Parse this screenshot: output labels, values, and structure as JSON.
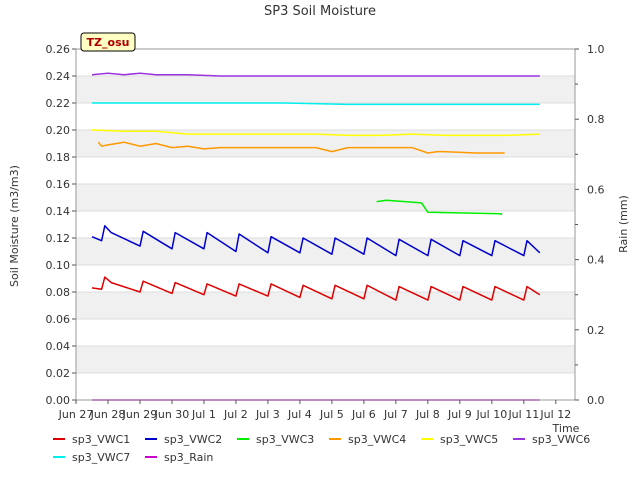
{
  "chart_data": {
    "type": "line",
    "title": "SP3 Soil Moisture",
    "badge": "TZ_osu",
    "xlabel": "Time",
    "ylabel": "Soil Moisture (m3/m3)",
    "y2label": "Rain (mm)",
    "xlim": [
      -0.5,
      15.1
    ],
    "ylim": [
      0,
      0.26
    ],
    "y2lim": [
      0,
      1.0
    ],
    "x_ticks": [
      {
        "v": -0.5,
        "label": "Jun 27"
      },
      {
        "v": 0.5,
        "label": "Jun 28"
      },
      {
        "v": 1.5,
        "label": "Jun 29"
      },
      {
        "v": 2.5,
        "label": "Jun 30"
      },
      {
        "v": 3.5,
        "label": "Jul 1"
      },
      {
        "v": 4.5,
        "label": "Jul 2"
      },
      {
        "v": 5.5,
        "label": "Jul 3"
      },
      {
        "v": 6.5,
        "label": "Jul 4"
      },
      {
        "v": 7.5,
        "label": "Jul 5"
      },
      {
        "v": 8.5,
        "label": "Jul 6"
      },
      {
        "v": 9.5,
        "label": "Jul 7"
      },
      {
        "v": 10.5,
        "label": "Jul 8"
      },
      {
        "v": 11.5,
        "label": "Jul 9"
      },
      {
        "v": 12.5,
        "label": "Jul 10"
      },
      {
        "v": 13.5,
        "label": "Jul 11"
      },
      {
        "v": 14.5,
        "label": "Jul 12"
      }
    ],
    "y_ticks": [
      0.0,
      0.02,
      0.04,
      0.06,
      0.08,
      0.1,
      0.12,
      0.14,
      0.16,
      0.18,
      0.2,
      0.22,
      0.24,
      0.26
    ],
    "y_tick_labels": [
      "0.00",
      "0.02",
      "0.04",
      "0.06",
      "0.08",
      "0.10",
      "0.12",
      "0.14",
      "0.16",
      "0.18",
      "0.20",
      "0.22",
      "0.24",
      "0.26"
    ],
    "y2_ticks": [
      0.0,
      0.2,
      0.4,
      0.6,
      0.8,
      1.0
    ],
    "y2_tick_labels": [
      "0.0",
      "0.2",
      "0.4",
      "0.6",
      "0.8",
      "1.0"
    ],
    "grid": true,
    "legend_placement": "bottom",
    "series": [
      {
        "name": "sp3_VWC1",
        "color": "#dd0000",
        "axis": "left",
        "x": [
          0,
          0.3,
          0.4,
          0.6,
          1.5,
          1.6,
          2.5,
          2.6,
          3.5,
          3.6,
          4.5,
          4.6,
          5.5,
          5.6,
          6.5,
          6.6,
          7.5,
          7.6,
          8.5,
          8.6,
          9.5,
          9.6,
          10.5,
          10.6,
          11.5,
          11.6,
          12.5,
          12.6,
          13.5,
          13.6,
          14.0
        ],
        "y": [
          0.083,
          0.082,
          0.091,
          0.087,
          0.08,
          0.088,
          0.079,
          0.087,
          0.078,
          0.086,
          0.077,
          0.086,
          0.077,
          0.086,
          0.076,
          0.085,
          0.075,
          0.085,
          0.075,
          0.085,
          0.074,
          0.084,
          0.074,
          0.084,
          0.074,
          0.084,
          0.074,
          0.084,
          0.074,
          0.084,
          0.078
        ]
      },
      {
        "name": "sp3_VWC2",
        "color": "#0000cc",
        "axis": "left",
        "x": [
          0,
          0.3,
          0.4,
          0.6,
          1.5,
          1.6,
          2.5,
          2.6,
          3.5,
          3.6,
          4.5,
          4.6,
          5.5,
          5.6,
          6.5,
          6.6,
          7.5,
          7.6,
          8.5,
          8.6,
          9.5,
          9.6,
          10.5,
          10.6,
          11.5,
          11.6,
          12.5,
          12.6,
          13.5,
          13.6,
          14.0
        ],
        "y": [
          0.121,
          0.118,
          0.129,
          0.124,
          0.114,
          0.125,
          0.112,
          0.124,
          0.112,
          0.124,
          0.11,
          0.123,
          0.109,
          0.121,
          0.109,
          0.12,
          0.108,
          0.12,
          0.108,
          0.12,
          0.107,
          0.119,
          0.107,
          0.119,
          0.107,
          0.118,
          0.107,
          0.118,
          0.107,
          0.118,
          0.109
        ]
      },
      {
        "name": "sp3_VWC3",
        "color": "#00ee00",
        "axis": "left",
        "x": [
          8.9,
          9.2,
          10.3,
          10.5,
          12.8,
          12.8
        ],
        "y": [
          0.147,
          0.148,
          0.146,
          0.139,
          0.138,
          0.137
        ]
      },
      {
        "name": "sp3_VWC4",
        "color": "#ff9900",
        "axis": "left",
        "x": [
          0.2,
          0.3,
          0.5,
          1.0,
          1.5,
          2.0,
          2.5,
          3.0,
          3.5,
          4.0,
          5.0,
          6.0,
          7.0,
          7.5,
          8.0,
          8.5,
          9.0,
          10.0,
          10.5,
          10.8,
          11.0,
          12.0,
          12.9
        ],
        "y": [
          0.191,
          0.188,
          0.189,
          0.191,
          0.188,
          0.19,
          0.187,
          0.188,
          0.186,
          0.187,
          0.187,
          0.187,
          0.187,
          0.184,
          0.187,
          0.187,
          0.187,
          0.187,
          0.183,
          0.184,
          0.184,
          0.183,
          0.183
        ]
      },
      {
        "name": "sp3_VWC5",
        "color": "#ffff00",
        "axis": "left",
        "x": [
          0,
          1,
          2,
          3,
          4,
          5,
          6,
          7,
          8,
          9,
          10,
          11,
          12,
          13,
          14
        ],
        "y": [
          0.2,
          0.199,
          0.199,
          0.197,
          0.197,
          0.197,
          0.197,
          0.197,
          0.196,
          0.196,
          0.197,
          0.196,
          0.196,
          0.196,
          0.197
        ]
      },
      {
        "name": "sp3_VWC6",
        "color": "#9933dd",
        "axis": "left",
        "x": [
          0,
          0.5,
          1,
          1.5,
          2,
          3,
          4,
          5,
          6,
          7,
          8,
          9,
          10,
          11,
          12,
          13,
          14
        ],
        "y": [
          0.241,
          0.242,
          0.241,
          0.242,
          0.241,
          0.241,
          0.24,
          0.24,
          0.24,
          0.24,
          0.24,
          0.24,
          0.24,
          0.24,
          0.24,
          0.24,
          0.24
        ]
      },
      {
        "name": "sp3_VWC7",
        "color": "#00eeee",
        "axis": "left",
        "x": [
          0,
          2,
          4,
          6,
          8,
          10,
          12,
          14
        ],
        "y": [
          0.22,
          0.22,
          0.22,
          0.22,
          0.219,
          0.219,
          0.219,
          0.219
        ]
      },
      {
        "name": "sp3_Rain",
        "color": "#cc00cc",
        "axis": "right",
        "x": [
          0,
          14.0
        ],
        "y": [
          0,
          0
        ]
      }
    ]
  }
}
